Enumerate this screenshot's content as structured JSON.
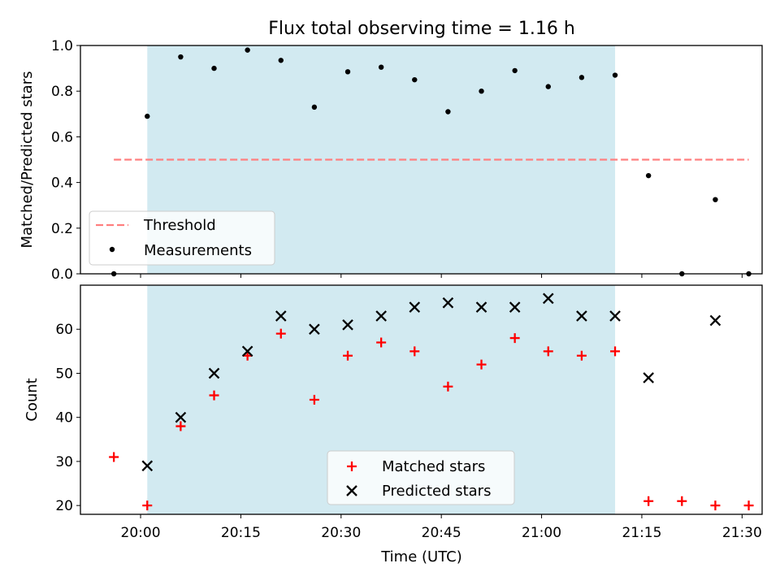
{
  "chart_data": {
    "title": "Flux total observing time = 1.16 h",
    "xlabel": "Time (UTC)",
    "x_ticks": [
      "20:00",
      "20:15",
      "20:30",
      "20:45",
      "21:00",
      "21:15",
      "21:30"
    ],
    "x_range": [
      "19:51",
      "21:33"
    ],
    "shaded_interval": {
      "start": "20:01",
      "end": "21:11",
      "color": "#add8e6"
    },
    "top": {
      "type": "scatter",
      "ylabel": "Matched/Predicted stars",
      "ylim": [
        0,
        1.0
      ],
      "yticks": [
        "0.0",
        "0.2",
        "0.4",
        "0.6",
        "0.8",
        "1.0"
      ],
      "threshold": {
        "name": "Threshold",
        "value": 0.5,
        "from": "19:56",
        "to": "21:31",
        "color": "#ff7f7f",
        "style": "dashed"
      },
      "series": [
        {
          "name": "Measurements",
          "color": "#000000",
          "marker": "dot",
          "x": [
            "19:56",
            "20:01",
            "20:06",
            "20:11",
            "20:16",
            "20:21",
            "20:26",
            "20:31",
            "20:36",
            "20:41",
            "20:46",
            "20:51",
            "20:56",
            "21:01",
            "21:06",
            "21:11",
            "21:16",
            "21:21",
            "21:26",
            "21:31"
          ],
          "y": [
            0.0,
            0.69,
            0.95,
            0.9,
            0.98,
            0.935,
            0.73,
            0.885,
            0.905,
            0.85,
            0.71,
            0.8,
            0.89,
            0.82,
            0.86,
            0.87,
            0.43,
            0.0,
            0.325,
            0.0
          ]
        }
      ],
      "legend": {
        "placement": "lower-left",
        "entries": [
          "Threshold",
          "Measurements"
        ]
      }
    },
    "bottom": {
      "type": "scatter",
      "ylabel": "Count",
      "ylim": [
        18,
        70
      ],
      "yticks": [
        "20",
        "30",
        "40",
        "50",
        "60"
      ],
      "series": [
        {
          "name": "Matched stars",
          "color": "#ff0000",
          "marker": "plus",
          "x": [
            "19:56",
            "20:01",
            "20:06",
            "20:11",
            "20:16",
            "20:21",
            "20:26",
            "20:31",
            "20:36",
            "20:41",
            "20:46",
            "20:51",
            "20:56",
            "21:01",
            "21:06",
            "21:11",
            "21:16",
            "21:21",
            "21:26",
            "21:31"
          ],
          "y": [
            31,
            20,
            38,
            45,
            54,
            59,
            44,
            54,
            57,
            55,
            47,
            52,
            58,
            55,
            54,
            55,
            21,
            21,
            20,
            20
          ]
        },
        {
          "name": "Predicted stars",
          "color": "#000000",
          "marker": "x",
          "x": [
            "20:01",
            "20:06",
            "20:11",
            "20:16",
            "20:21",
            "20:26",
            "20:31",
            "20:36",
            "20:41",
            "20:46",
            "20:51",
            "20:56",
            "21:01",
            "21:06",
            "21:11",
            "21:16",
            "21:26"
          ],
          "y": [
            29,
            40,
            50,
            55,
            63,
            60,
            61,
            63,
            65,
            66,
            65,
            65,
            67,
            63,
            63,
            49,
            62
          ]
        }
      ],
      "legend": {
        "placement": "lower-center",
        "entries": [
          "Matched stars",
          "Predicted stars"
        ]
      }
    }
  }
}
